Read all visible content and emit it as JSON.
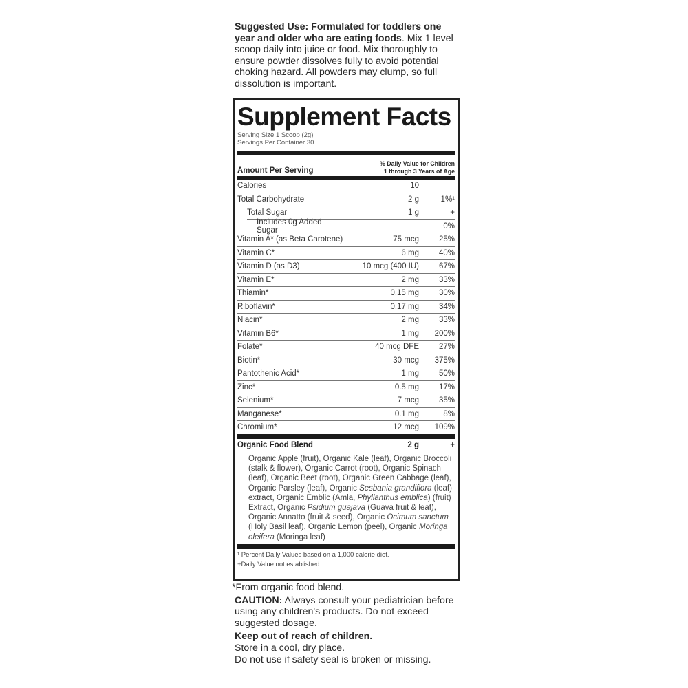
{
  "top": {
    "bold": "Suggested Use: Formulated for toddlers one year and older who are eating foods",
    "text": ". Mix 1 level scoop daily into juice or food. Mix thoroughly to ensure powder dissolves fully to avoid potential choking hazard. All powders may clump, so full dissolution is important."
  },
  "facts": {
    "title": "Supplement Facts",
    "serving_size": "Serving Size 1 Scoop (2g)",
    "servings": "Servings Per Container 30",
    "amount_header": "Amount Per Serving",
    "dv_header_1": "% Daily Value for Children",
    "dv_header_2": "1 through 3 Years of Age",
    "rows": [
      {
        "name": "Calories",
        "amount": "10",
        "dv": "",
        "indent": 0
      },
      {
        "name": "Total Carbohydrate",
        "amount": "2 g",
        "dv": "1%¹",
        "indent": 0
      },
      {
        "name": "Total Sugar",
        "amount": "1 g",
        "dv": "+",
        "indent": 1
      },
      {
        "name": "Includes 0g Added Sugar",
        "amount": "",
        "dv": "0%",
        "indent": 2
      },
      {
        "name": "Vitamin A* (as Beta Carotene)",
        "amount": "75 mcg",
        "dv": "25%",
        "indent": 0
      },
      {
        "name": "Vitamin C*",
        "amount": "6 mg",
        "dv": "40%",
        "indent": 0
      },
      {
        "name": "Vitamin D (as D3)",
        "amount": "10 mcg (400 IU)",
        "dv": "67%",
        "indent": 0
      },
      {
        "name": "Vitamin E*",
        "amount": "2 mg",
        "dv": "33%",
        "indent": 0
      },
      {
        "name": "Thiamin*",
        "amount": "0.15 mg",
        "dv": "30%",
        "indent": 0
      },
      {
        "name": "Riboflavin*",
        "amount": "0.17 mg",
        "dv": "34%",
        "indent": 0
      },
      {
        "name": "Niacin*",
        "amount": "2 mg",
        "dv": "33%",
        "indent": 0
      },
      {
        "name": "Vitamin B6*",
        "amount": "1 mg",
        "dv": "200%",
        "indent": 0
      },
      {
        "name": "Folate*",
        "amount": "40 mcg DFE",
        "dv": "27%",
        "indent": 0
      },
      {
        "name": "Biotin*",
        "amount": "30 mcg",
        "dv": "375%",
        "indent": 0
      },
      {
        "name": "Pantothenic Acid*",
        "amount": "1 mg",
        "dv": "50%",
        "indent": 0
      },
      {
        "name": "Zinc*",
        "amount": "0.5 mg",
        "dv": "17%",
        "indent": 0
      },
      {
        "name": "Selenium*",
        "amount": "7 mcg",
        "dv": "35%",
        "indent": 0
      },
      {
        "name": "Manganese*",
        "amount": "0.1 mg",
        "dv": "8%",
        "indent": 0
      },
      {
        "name": "Chromium*",
        "amount": "12 mcg",
        "dv": "109%",
        "indent": 0
      }
    ],
    "blend": {
      "name": "Organic Food Blend",
      "amount": "2 g",
      "dv": "+",
      "ingredients": [
        {
          "t": "Organic Apple (fruit), Organic Kale (leaf), Organic Broccoli (stalk & flower), Organic Carrot (root), Organic Spinach (leaf), Organic Beet (root), Organic Green Cabbage (leaf), Organic Parsley (leaf), Organic ",
          "i": false
        },
        {
          "t": "Sesbania grandiflora",
          "i": true
        },
        {
          "t": " (leaf) extract, Organic Emblic (Amla, ",
          "i": false
        },
        {
          "t": "Phyllanthus emblica",
          "i": true
        },
        {
          "t": ") (fruit) Extract, Organic ",
          "i": false
        },
        {
          "t": "Psidium guajava",
          "i": true
        },
        {
          "t": " (Guava fruit & leaf), Organic Annatto (fruit & seed), Organic ",
          "i": false
        },
        {
          "t": "Ocimum sanctum",
          "i": true
        },
        {
          "t": " (Holy Basil leaf), Organic Lemon (peel), Organic ",
          "i": false
        },
        {
          "t": "Moringa oleifera",
          "i": true
        },
        {
          "t": " (Moringa leaf)",
          "i": false
        }
      ]
    },
    "footnote_1": "¹ Percent Daily Values based on a 1,000 calorie diet.",
    "footnote_2": "+Daily Value not established."
  },
  "bottom": {
    "organic_note": "*From organic food blend.",
    "caution_label": "CAUTION:",
    "caution_text": " Always consult your pediatrician before using any children's products. Do not exceed suggested dosage.",
    "keep_out": "Keep out of reach of children.",
    "store": "Store in a cool, dry place.",
    "seal": "Do not use if safety seal is broken or missing."
  }
}
